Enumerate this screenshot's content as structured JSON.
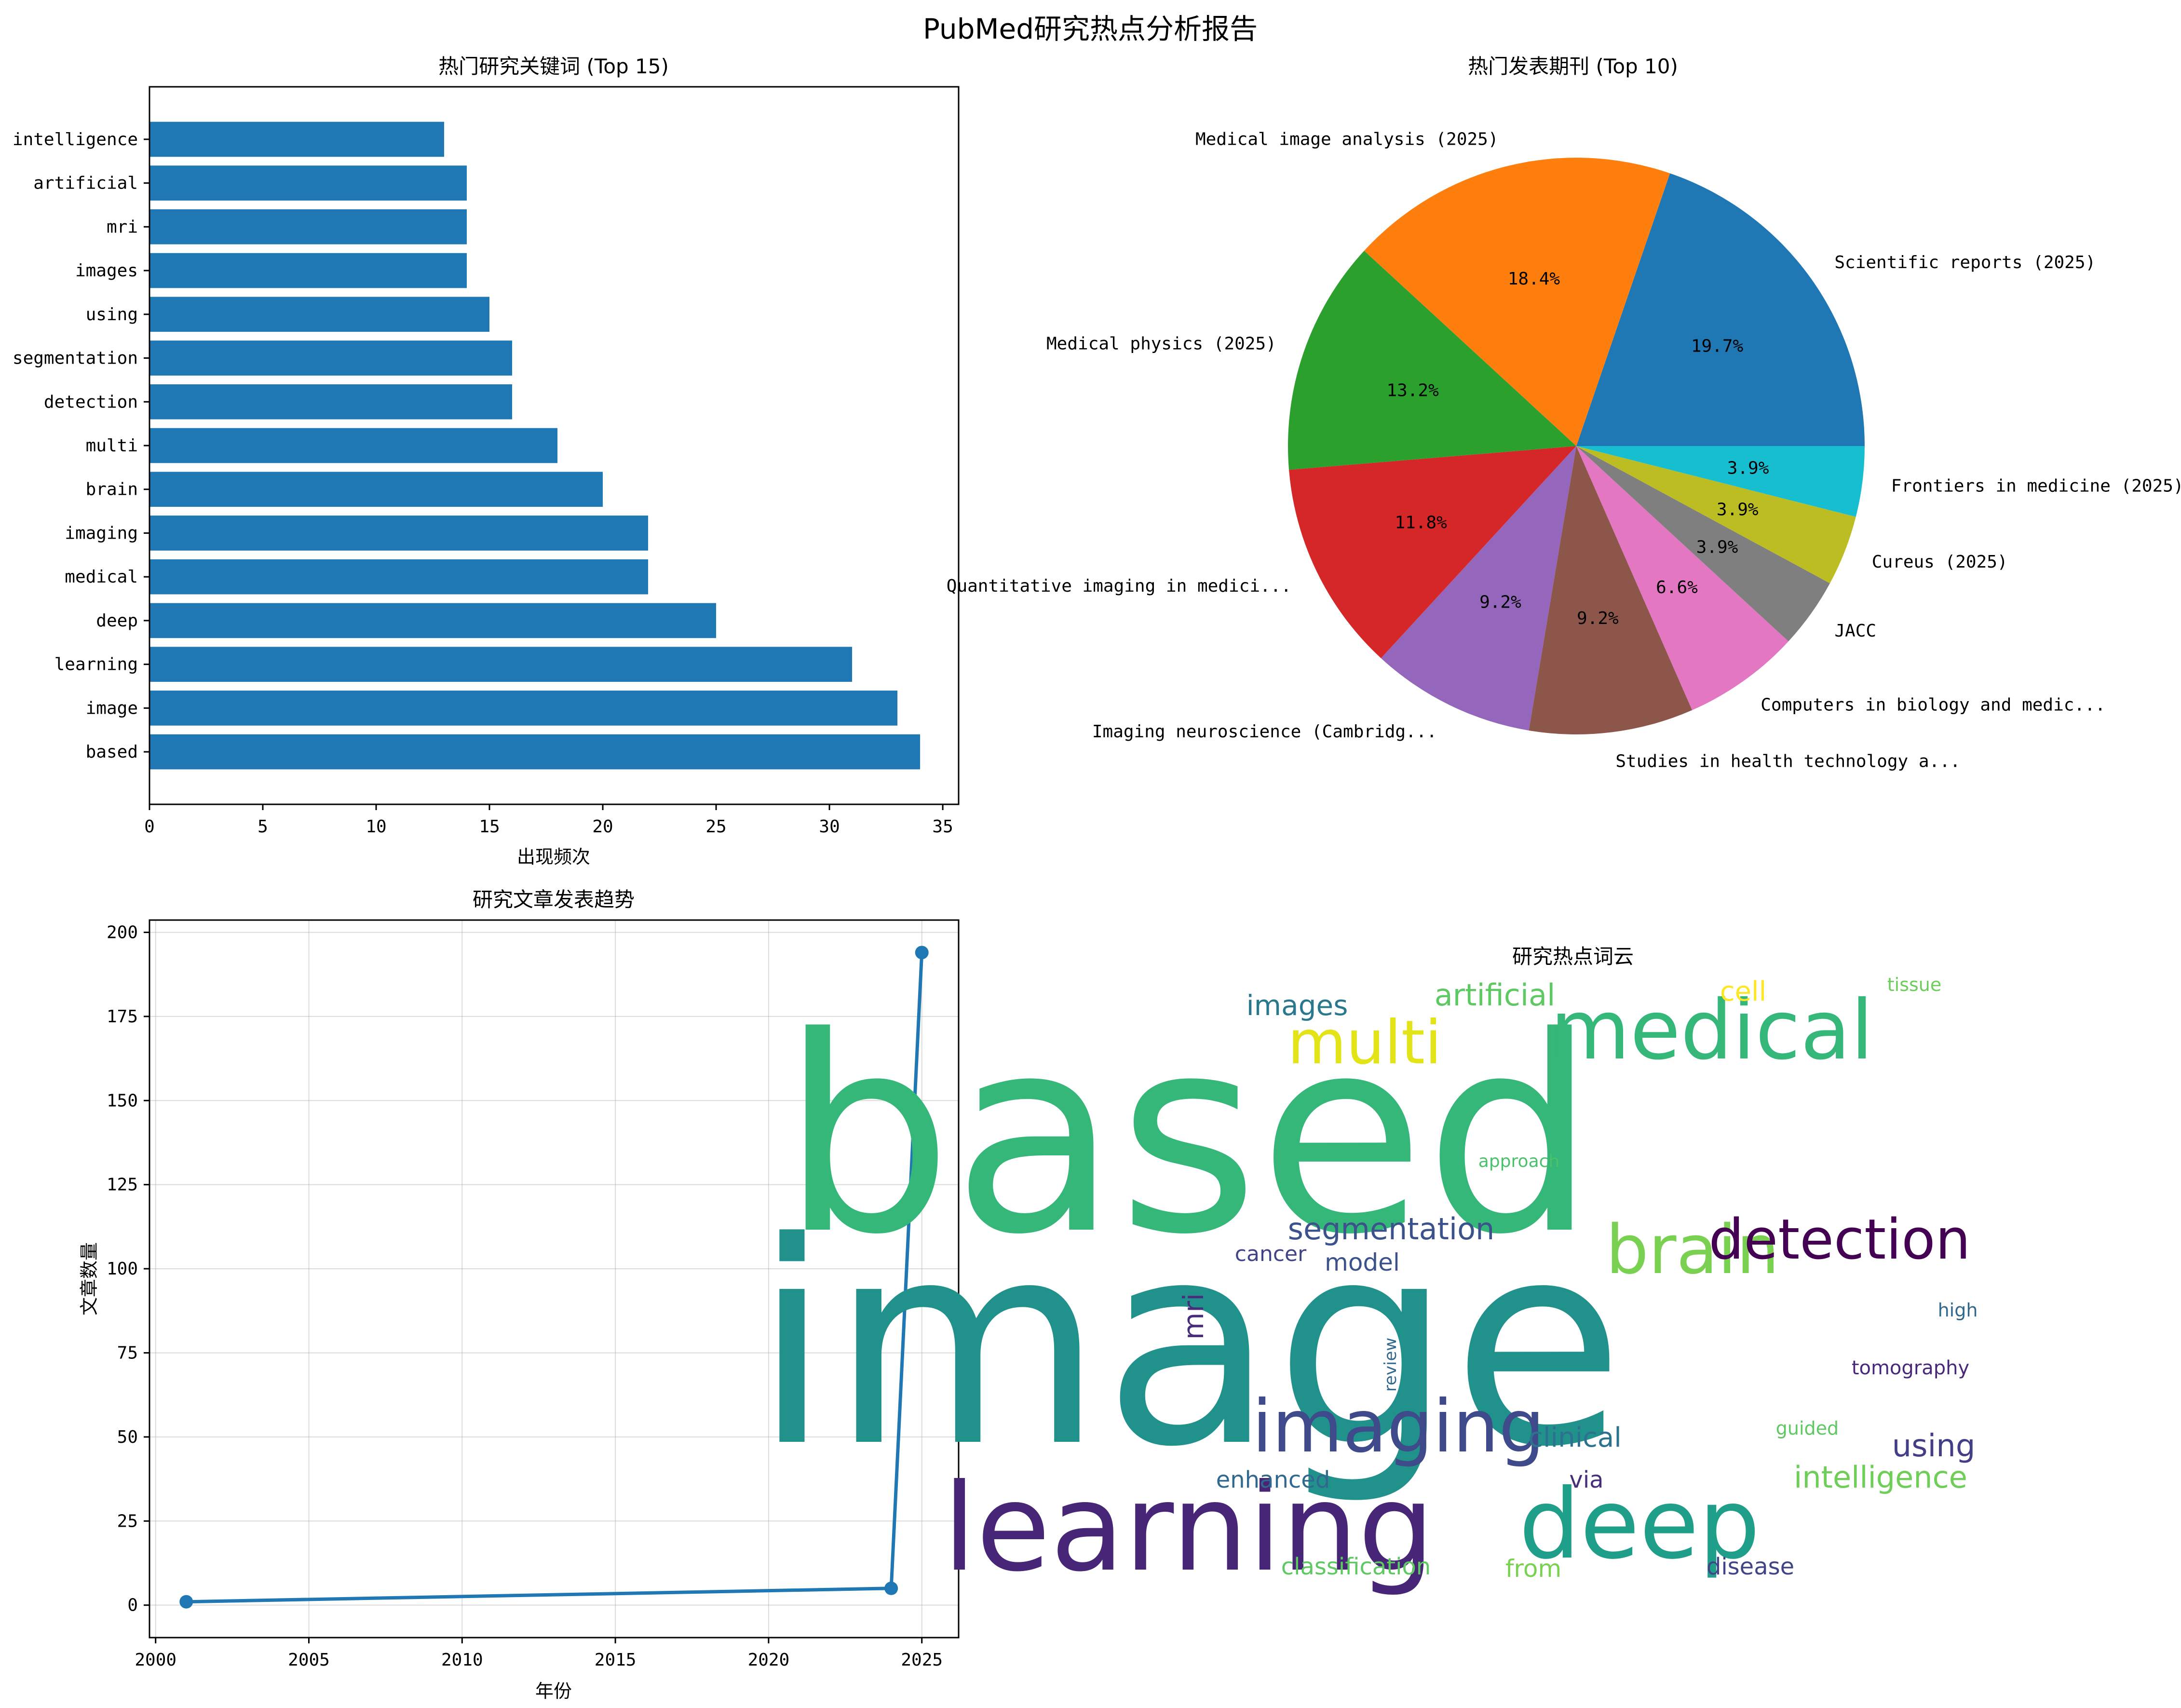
{
  "suptitle": "PubMed研究热点分析报告",
  "chart_data": [
    {
      "type": "bar",
      "orientation": "horizontal",
      "title": "热门研究关键词 (Top 15)",
      "xlabel": "出现频次",
      "ylabel": "",
      "categories": [
        "based",
        "image",
        "learning",
        "deep",
        "medical",
        "imaging",
        "brain",
        "multi",
        "detection",
        "segmentation",
        "using",
        "images",
        "mri",
        "artificial",
        "intelligence"
      ],
      "values": [
        34,
        33,
        31,
        25,
        22,
        22,
        20,
        18,
        16,
        16,
        15,
        14,
        14,
        14,
        13
      ],
      "xlim": [
        0,
        35.7
      ],
      "xticks": [
        0,
        5,
        10,
        15,
        20,
        25,
        30,
        35
      ],
      "grid": false,
      "color": "#1f77b4"
    },
    {
      "type": "pie",
      "title": "热门发表期刊 (Top 10)",
      "labels": [
        "Scientific reports (2025)",
        "Medical image analysis (2025)",
        "Medical physics (2025)",
        "Quantitative imaging in medici...",
        "Imaging neuroscience (Cambridg...",
        "Studies in health technology a...",
        "Computers in biology and medic...",
        "JACC",
        "Cureus (2025)",
        "Frontiers in medicine (2025)"
      ],
      "values": [
        15,
        14,
        10,
        9,
        7,
        7,
        5,
        3,
        3,
        3
      ],
      "percent_labels": [
        "19.7%",
        "18.4%",
        "13.2%",
        "11.8%",
        "9.2%",
        "9.2%",
        "6.6%",
        "3.9%",
        "3.9%",
        "3.9%"
      ],
      "colors": [
        "#1f77b4",
        "#ff7f0e",
        "#2ca02c",
        "#d62728",
        "#9467bd",
        "#8c564b",
        "#e377c2",
        "#7f7f7f",
        "#bcbd22",
        "#17becf"
      ]
    },
    {
      "type": "line",
      "title": "研究文章发表趋势",
      "xlabel": "年份",
      "ylabel": "文章数量",
      "x": [
        2001,
        2024,
        2025
      ],
      "y": [
        1,
        5,
        194
      ],
      "xlim": [
        1999.8,
        2026.2
      ],
      "ylim": [
        -9.65,
        203.65
      ],
      "xticks": [
        2000,
        2005,
        2010,
        2015,
        2020,
        2025
      ],
      "yticks": [
        0,
        25,
        50,
        75,
        100,
        125,
        150,
        175,
        200
      ],
      "grid": true,
      "color": "#1f77b4"
    }
  ],
  "wordcloud": {
    "title": "研究热点词云",
    "words": [
      {
        "text": "based",
        "color": "#35b779"
      },
      {
        "text": "image",
        "color": "#21918c"
      },
      {
        "text": "learning",
        "color": "#482677"
      },
      {
        "text": "deep",
        "color": "#1f9e89"
      },
      {
        "text": "medical",
        "color": "#35b779"
      },
      {
        "text": "imaging",
        "color": "#3e4a89"
      },
      {
        "text": "brain",
        "color": "#7ad151"
      },
      {
        "text": "multi",
        "color": "#e3e418"
      },
      {
        "text": "detection",
        "color": "#440154"
      },
      {
        "text": "segmentation",
        "color": "#3b528b"
      },
      {
        "text": "artificial",
        "color": "#5ec962"
      },
      {
        "text": "images",
        "color": "#2a788e"
      },
      {
        "text": "cell",
        "color": "#fde725"
      },
      {
        "text": "tissue",
        "color": "#6ccd5a"
      },
      {
        "text": "approach",
        "color": "#4ac16d"
      },
      {
        "text": "cancer",
        "color": "#414487"
      },
      {
        "text": "model",
        "color": "#3b528b"
      },
      {
        "text": "mri",
        "color": "#472d7b"
      },
      {
        "text": "review",
        "color": "#31688e"
      },
      {
        "text": "high",
        "color": "#31688e"
      },
      {
        "text": "tomography",
        "color": "#482878"
      },
      {
        "text": "guided",
        "color": "#5ec962"
      },
      {
        "text": "clinical",
        "color": "#2c728e"
      },
      {
        "text": "using",
        "color": "#433e85"
      },
      {
        "text": "intelligence",
        "color": "#6ece58"
      },
      {
        "text": "enhanced",
        "color": "#31688e"
      },
      {
        "text": "via",
        "color": "#472d7b"
      },
      {
        "text": "classification",
        "color": "#5ec962"
      },
      {
        "text": "from",
        "color": "#7ad151"
      },
      {
        "text": "disease",
        "color": "#414487"
      }
    ]
  }
}
